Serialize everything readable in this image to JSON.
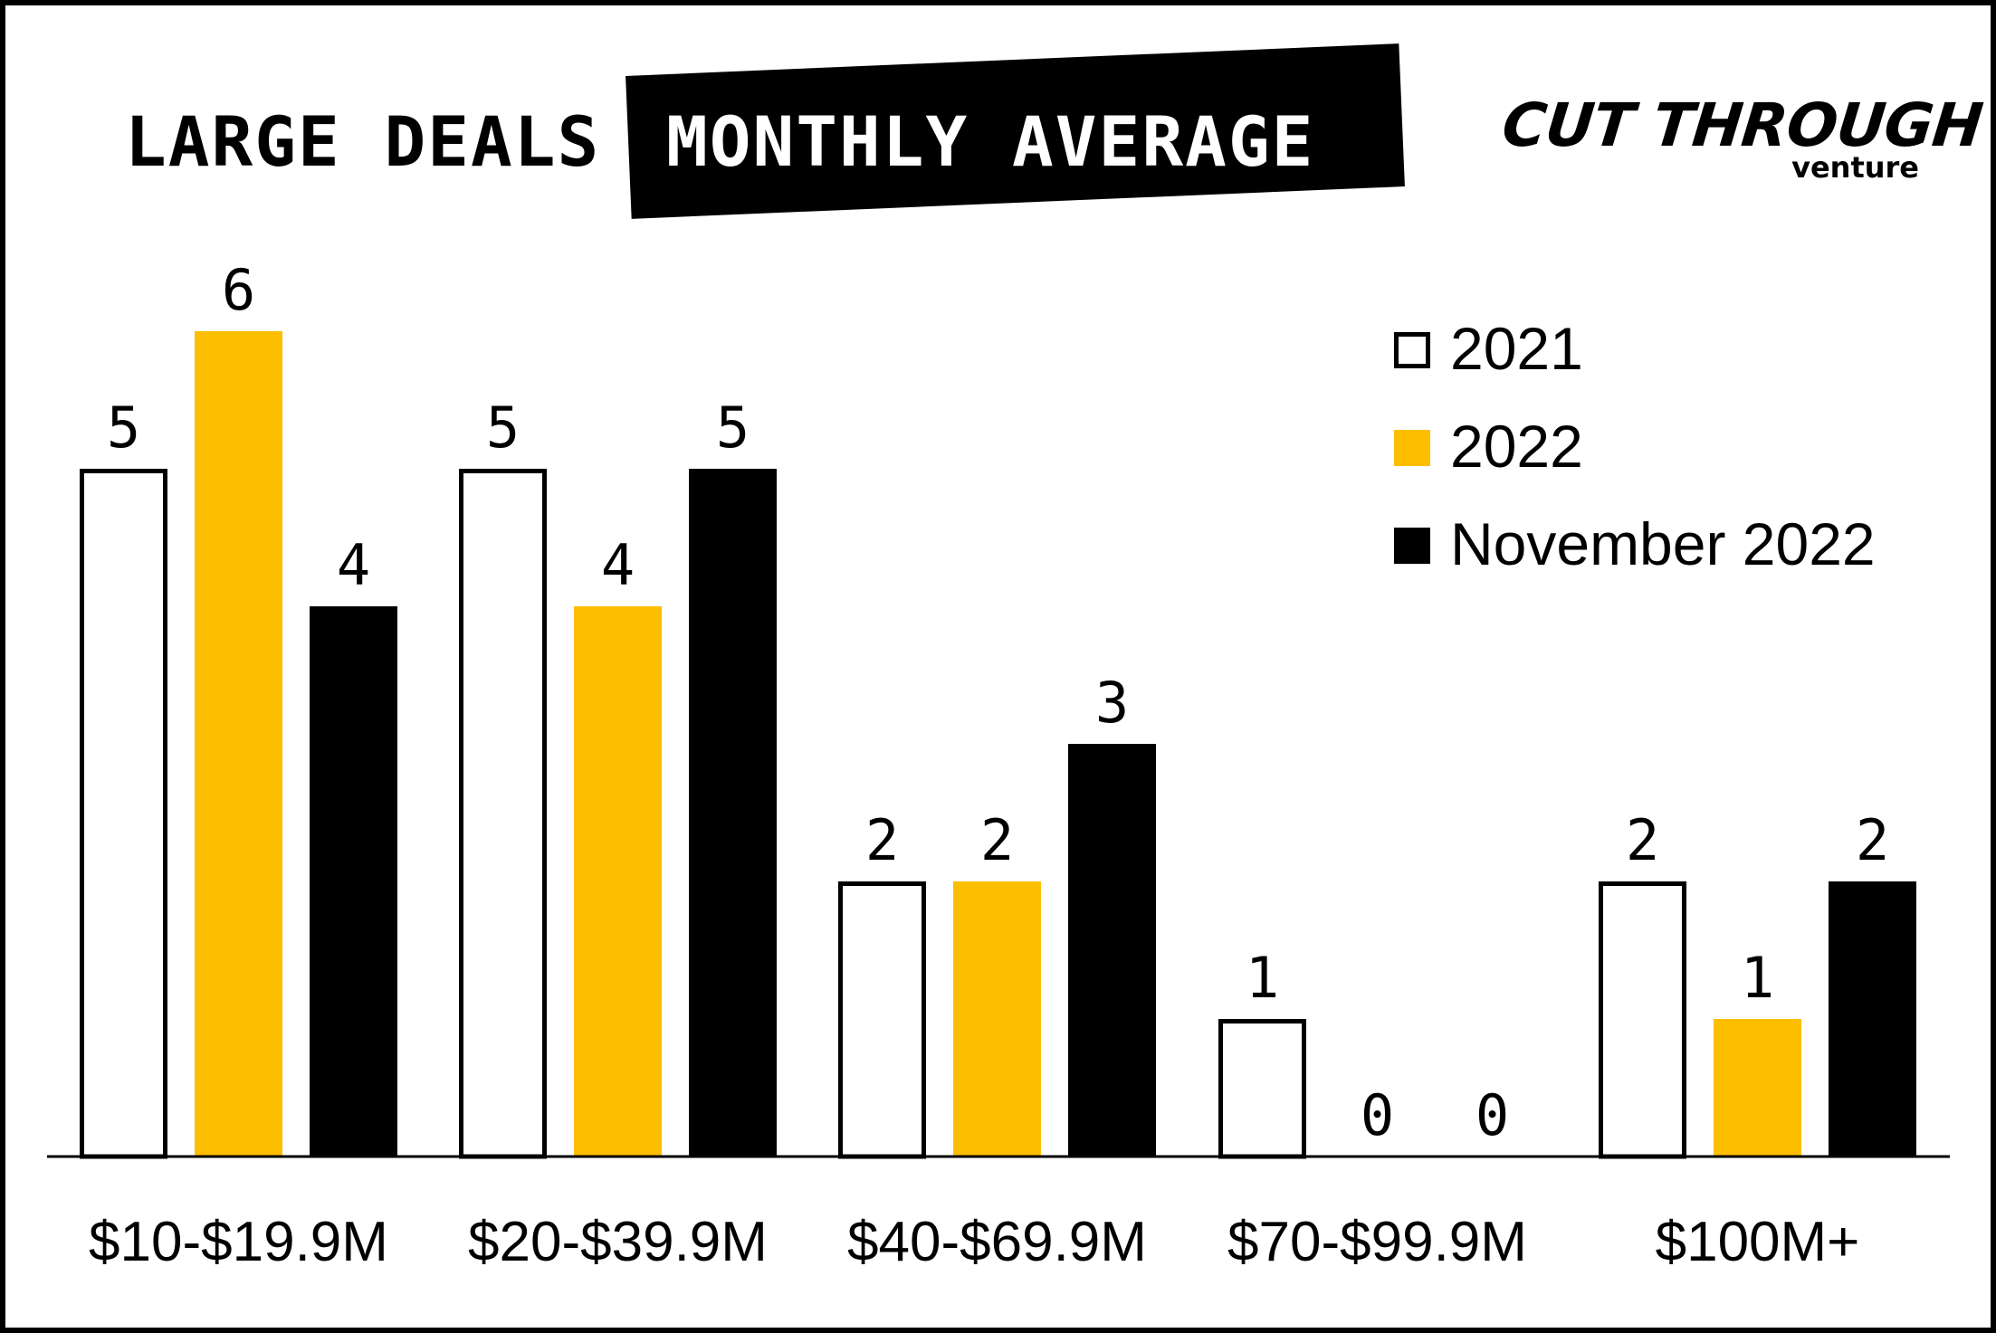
{
  "header": {
    "title_left": "LARGE DEALS",
    "title_right": "MONTHLY AVERAGE"
  },
  "logo": {
    "main": "CUT THROUGH",
    "sub": "venture"
  },
  "colors": {
    "series_2021_fill": "#ffffff",
    "series_2021_stroke": "#000000",
    "series_2022": "#FDBE00",
    "series_nov_2022": "#000000"
  },
  "chart_data": {
    "type": "bar",
    "title": "LARGE DEALS MONTHLY AVERAGE",
    "categories": [
      "$10-$19.9M",
      "$20-$39.9M",
      "$40-$69.9M",
      "$70-$99.9M",
      "$100M+"
    ],
    "series": [
      {
        "name": "2021",
        "values": [
          5,
          5,
          2,
          1,
          2
        ]
      },
      {
        "name": "2022",
        "values": [
          6,
          4,
          2,
          0,
          1
        ]
      },
      {
        "name": "November 2022",
        "values": [
          4,
          5,
          3,
          0,
          2
        ]
      }
    ],
    "ylim": [
      0,
      6
    ],
    "grid": false,
    "legend": "top-right",
    "data_labels": true
  }
}
